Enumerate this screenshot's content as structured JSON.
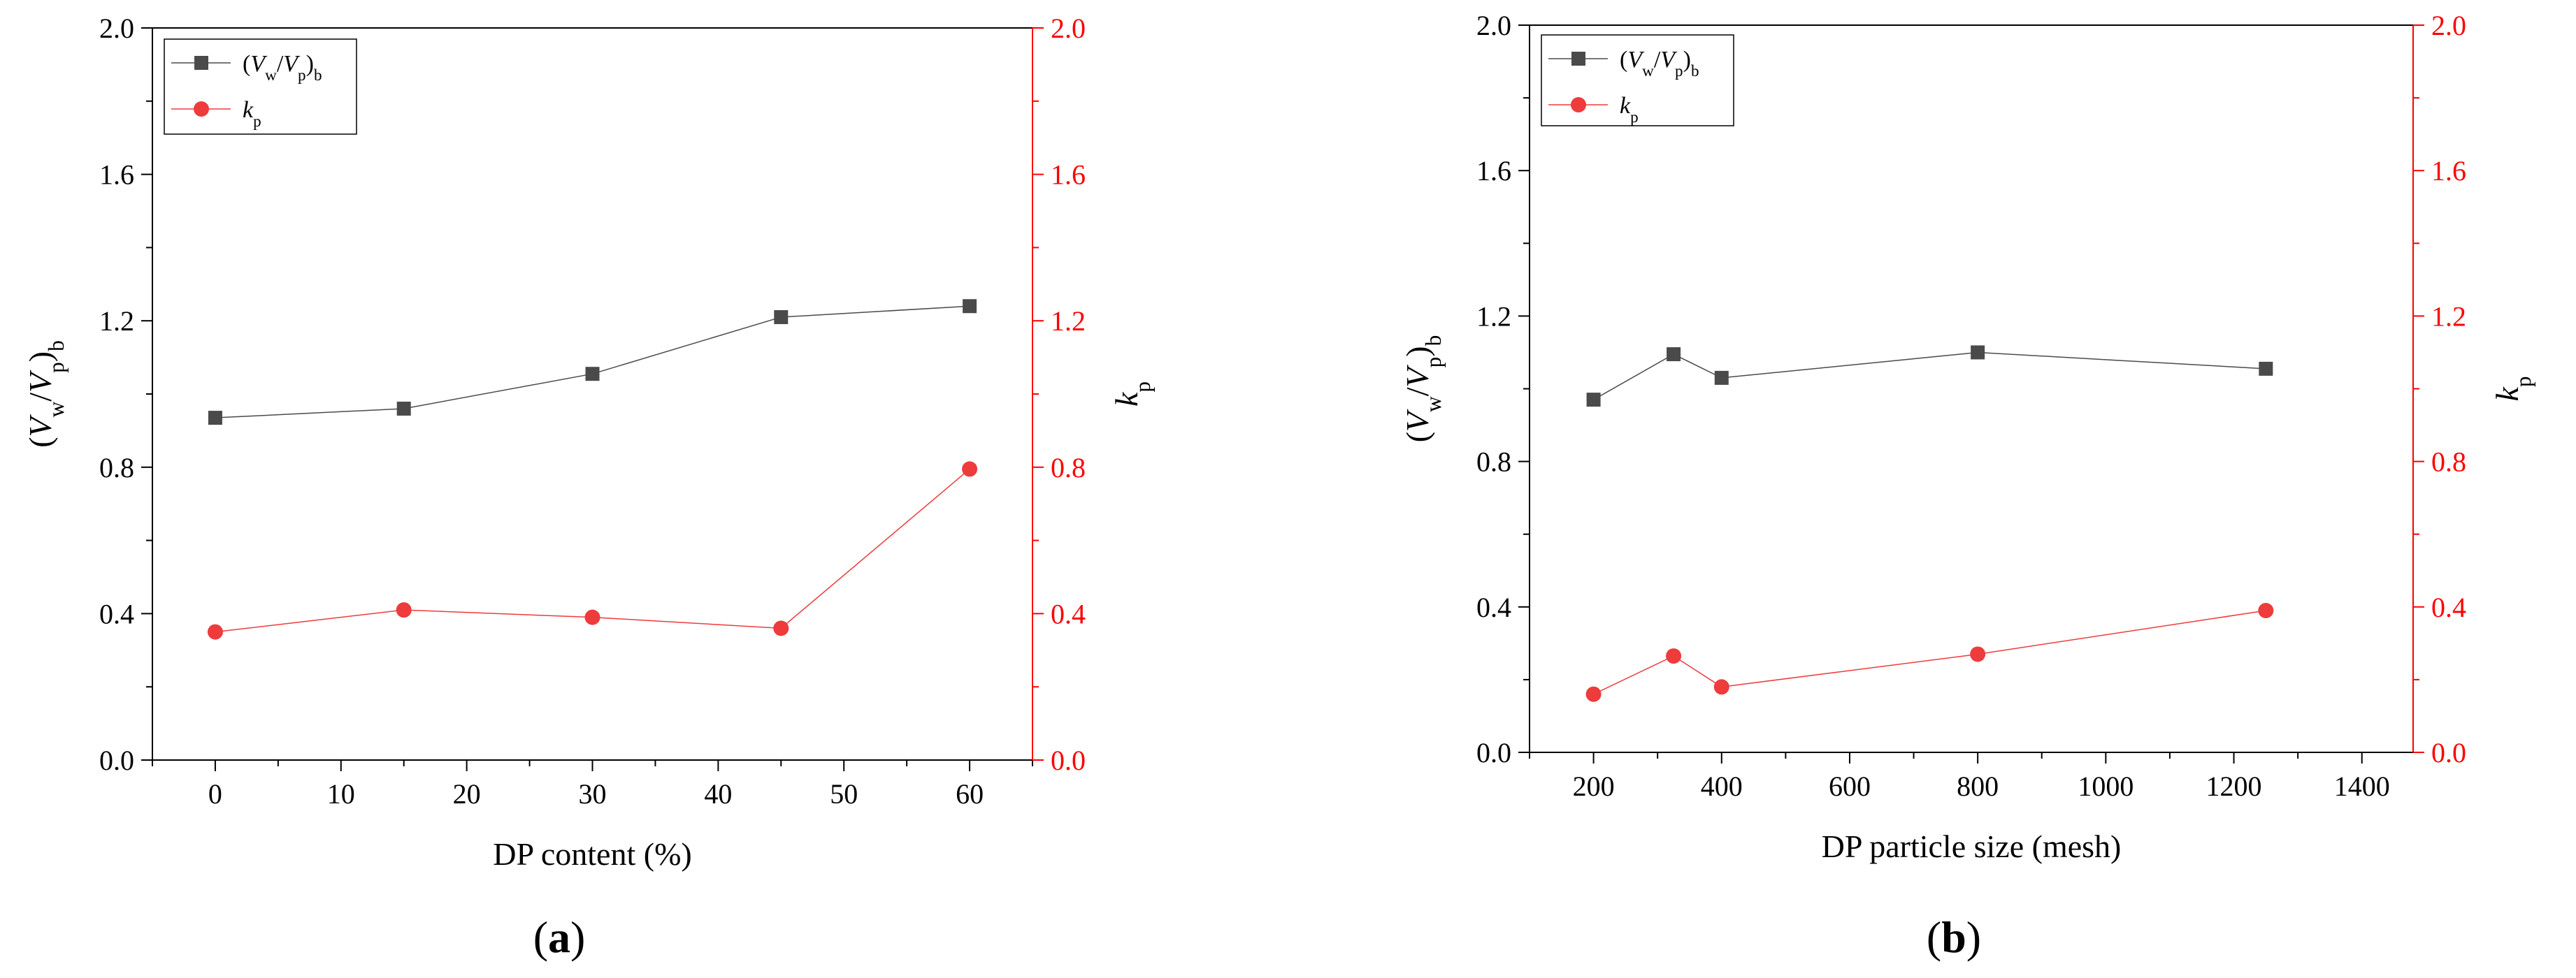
{
  "colors": {
    "black": "#000000",
    "series1": "#4a4a4a",
    "series2": "#ee3b3b",
    "right_axis": "#ff0000"
  },
  "chart_data": [
    {
      "type": "line",
      "panel_label": "a",
      "xlabel": "DP content (%)",
      "xlim": [
        -5,
        65
      ],
      "xticks": [
        0,
        10,
        20,
        30,
        40,
        50,
        60
      ],
      "ylabel": {
        "open": "(",
        "v1": "V",
        "s1": "w",
        "slash": "/",
        "v2": "V",
        "s2": "p",
        "close": ")",
        "s3": "b"
      },
      "ylim": [
        0,
        2.0
      ],
      "yticks": [
        "0.0",
        "0.4",
        "0.8",
        "1.2",
        "1.6",
        "2.0"
      ],
      "y2label": {
        "k": "k",
        "s": "p"
      },
      "y2lim": [
        0,
        2.0
      ],
      "y2ticks": [
        "0.0",
        "0.4",
        "0.8",
        "1.2",
        "1.6",
        "2.0"
      ],
      "legend_position": "top-left",
      "series": [
        {
          "name": {
            "open": "(",
            "v1": "V",
            "s1": "w",
            "slash": "/",
            "v2": "V",
            "s2": "p",
            "close": ")",
            "s3": "b"
          },
          "axis": "left",
          "marker": "square",
          "x": [
            0,
            15,
            30,
            45,
            60
          ],
          "values": [
            0.935,
            0.96,
            1.055,
            1.21,
            1.24
          ]
        },
        {
          "name": {
            "k": "k",
            "s": "p"
          },
          "axis": "right",
          "marker": "circle",
          "x": [
            0,
            15,
            30,
            45,
            60
          ],
          "values": [
            0.35,
            0.41,
            0.39,
            0.36,
            0.795
          ]
        }
      ]
    },
    {
      "type": "line",
      "panel_label": "b",
      "xlabel": "DP particle size (mesh)",
      "xlim": [
        100,
        1480
      ],
      "xticks": [
        200,
        400,
        600,
        800,
        1000,
        1200,
        1400
      ],
      "ylabel": {
        "open": "(",
        "v1": "V",
        "s1": "w",
        "slash": "/",
        "v2": "V",
        "s2": "p",
        "close": ")",
        "s3": "b"
      },
      "ylim": [
        0,
        2.0
      ],
      "yticks": [
        "0.0",
        "0.4",
        "0.8",
        "1.2",
        "1.6",
        "2.0"
      ],
      "y2label": {
        "k": "k",
        "s": "p"
      },
      "y2lim": [
        0,
        2.0
      ],
      "y2ticks": [
        "0.0",
        "0.4",
        "0.8",
        "1.2",
        "1.6",
        "2.0"
      ],
      "legend_position": "top-left",
      "series": [
        {
          "name": {
            "open": "(",
            "v1": "V",
            "s1": "w",
            "slash": "/",
            "v2": "V",
            "s2": "p",
            "close": ")",
            "s3": "b"
          },
          "axis": "left",
          "marker": "square",
          "x": [
            200,
            325,
            400,
            800,
            1250
          ],
          "values": [
            0.97,
            1.095,
            1.03,
            1.1,
            1.055
          ]
        },
        {
          "name": {
            "k": "k",
            "s": "p"
          },
          "axis": "right",
          "marker": "circle",
          "x": [
            200,
            325,
            400,
            800,
            1250
          ],
          "values": [
            0.16,
            0.265,
            0.18,
            0.27,
            0.39
          ]
        }
      ]
    }
  ]
}
